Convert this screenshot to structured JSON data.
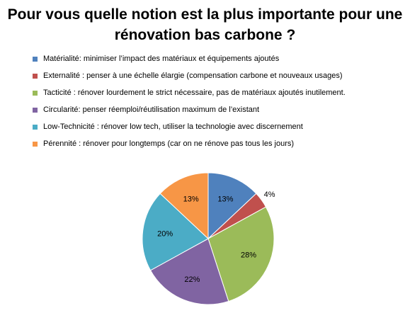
{
  "chart_data": {
    "type": "pie",
    "title_lines": [
      "Pour vous quelle notion est la plus importante pour une",
      "rénovation bas carbone ?"
    ],
    "legend_placement": "top",
    "series": [
      {
        "label": "Matérialité: minimiser l’impact des matériaux et équipements  ajoutés",
        "value": 13,
        "value_label": "13%",
        "color": "#4f81bd"
      },
      {
        "label": "Externalité : penser à une échelle élargie (compensation carbone et nouveaux usages)",
        "value": 4,
        "value_label": "4%",
        "color": "#c0504d"
      },
      {
        "label": "Tacticité : rénover lourdement le strict nécessaire, pas de matériaux ajoutés inutilement.",
        "value": 28,
        "value_label": "28%",
        "color": "#9bbb59"
      },
      {
        "label": "Circularité: penser réemploi/réutilisation maximum de l’existant",
        "value": 22,
        "value_label": "22%",
        "color": "#8064a2"
      },
      {
        "label": "Low-Technicité : rénover low tech, utiliser la technologie avec discernement",
        "value": 20,
        "value_label": "20%",
        "color": "#4bacc6"
      },
      {
        "label": "Pérennité : rénover pour longtemps (car on ne rénove pas tous les jours)",
        "value": 13,
        "value_label": "13%",
        "color": "#f79646"
      }
    ]
  }
}
